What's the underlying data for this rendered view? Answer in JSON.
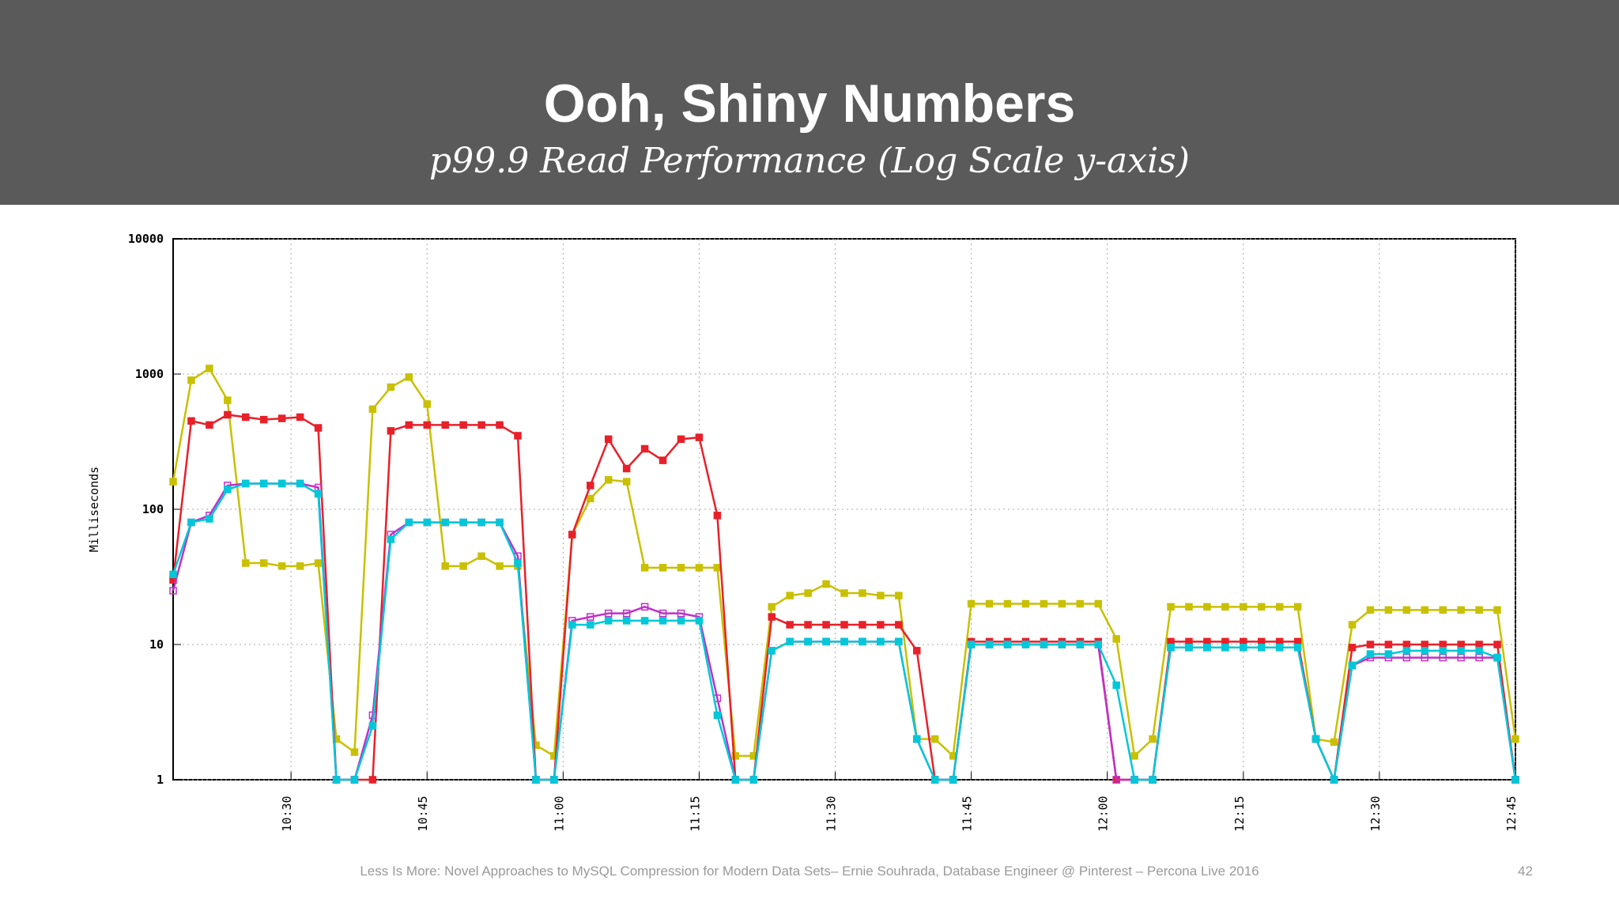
{
  "header": {
    "title": "Ooh, Shiny Numbers",
    "subtitle": "p99.9 Read Performance (Log Scale y-axis)"
  },
  "chart_data": {
    "type": "line",
    "ylabel": "Milliseconds",
    "log_y": true,
    "grid": true,
    "xlim": [
      "10:17",
      "12:45"
    ],
    "xticks": [
      "10:30",
      "10:45",
      "11:00",
      "11:15",
      "11:30",
      "11:45",
      "12:00",
      "12:15",
      "12:30",
      "12:45"
    ],
    "ylim": [
      1,
      10000
    ],
    "yticks": [
      1,
      10,
      100,
      1000,
      10000
    ],
    "x": [
      "10:17",
      "10:19",
      "10:21",
      "10:23",
      "10:25",
      "10:27",
      "10:29",
      "10:31",
      "10:33",
      "10:35",
      "10:37",
      "10:39",
      "10:41",
      "10:43",
      "10:45",
      "10:47",
      "10:49",
      "10:51",
      "10:53",
      "10:55",
      "10:57",
      "10:59",
      "11:01",
      "11:03",
      "11:05",
      "11:07",
      "11:09",
      "11:11",
      "11:13",
      "11:15",
      "11:17",
      "11:19",
      "11:21",
      "11:23",
      "11:25",
      "11:27",
      "11:29",
      "11:31",
      "11:33",
      "11:35",
      "11:37",
      "11:39",
      "11:41",
      "11:43",
      "11:45",
      "11:47",
      "11:49",
      "11:51",
      "11:53",
      "11:55",
      "11:57",
      "11:59",
      "12:01",
      "12:03",
      "12:05",
      "12:07",
      "12:09",
      "12:11",
      "12:13",
      "12:15",
      "12:17",
      "12:19",
      "12:21",
      "12:23",
      "12:25",
      "12:27",
      "12:29",
      "12:31",
      "12:33",
      "12:35",
      "12:37",
      "12:39",
      "12:41",
      "12:43",
      "12:45"
    ],
    "series": [
      {
        "color": "#c8c000",
        "values": [
          160,
          900,
          1100,
          640,
          40,
          40,
          38,
          38,
          40,
          2,
          1.6,
          550,
          800,
          950,
          600,
          38,
          38,
          45,
          38,
          38,
          1.8,
          1.5,
          65,
          120,
          165,
          160,
          37,
          37,
          37,
          37,
          37,
          1.5,
          1.5,
          19,
          23,
          24,
          28,
          24,
          24,
          23,
          23,
          2,
          2,
          1.5,
          20,
          20,
          20,
          20,
          20,
          20,
          20,
          20,
          11,
          1.5,
          2,
          19,
          19,
          19,
          19,
          19,
          19,
          19,
          19,
          2,
          1.9,
          14,
          18,
          18,
          18,
          18,
          18,
          18,
          18,
          18,
          2
        ]
      },
      {
        "color": "#e8202a",
        "values": [
          30,
          450,
          420,
          500,
          480,
          460,
          470,
          480,
          400,
          1,
          1,
          1,
          380,
          420,
          420,
          420,
          420,
          420,
          420,
          350,
          1,
          1,
          65,
          150,
          330,
          200,
          280,
          230,
          330,
          340,
          90,
          1,
          1,
          16,
          14,
          14,
          14,
          14,
          14,
          14,
          14,
          9,
          1,
          1,
          10.5,
          10.5,
          10.5,
          10.5,
          10.5,
          10.5,
          10.5,
          10.5,
          1,
          1,
          1,
          10.5,
          10.5,
          10.5,
          10.5,
          10.5,
          10.5,
          10.5,
          10.5,
          2,
          1,
          9.5,
          10,
          10,
          10,
          10,
          10,
          10,
          10,
          10,
          1
        ]
      },
      {
        "color": "#c030c8",
        "values": [
          25,
          80,
          90,
          150,
          155,
          155,
          155,
          155,
          145,
          1,
          1,
          3,
          65,
          80,
          80,
          80,
          80,
          80,
          80,
          45,
          1,
          1,
          15,
          16,
          17,
          17,
          19,
          17,
          17,
          16,
          4,
          1,
          1,
          9,
          10.5,
          10.5,
          10.5,
          10.5,
          10.5,
          10.5,
          10.5,
          2,
          1,
          1,
          10,
          10,
          10,
          10,
          10,
          10,
          10,
          10,
          1,
          1,
          1,
          9.5,
          9.5,
          9.5,
          9.5,
          9.5,
          9.5,
          9.5,
          9.5,
          2,
          1,
          7,
          8,
          8,
          8,
          8,
          8,
          8,
          8,
          8,
          1
        ]
      },
      {
        "color": "#00c8d8",
        "values": [
          33,
          80,
          85,
          140,
          155,
          155,
          155,
          155,
          130,
          1,
          1,
          2.5,
          60,
          80,
          80,
          80,
          80,
          80,
          80,
          40,
          1,
          1,
          14,
          14,
          15,
          15,
          15,
          15,
          15,
          15,
          3,
          1,
          1,
          9,
          10.5,
          10.5,
          10.5,
          10.5,
          10.5,
          10.5,
          10.5,
          2,
          1,
          1,
          10,
          10,
          10,
          10,
          10,
          10,
          10,
          10,
          5,
          1,
          1,
          9.5,
          9.5,
          9.5,
          9.5,
          9.5,
          9.5,
          9.5,
          9.5,
          2,
          1,
          7,
          8.5,
          8.5,
          9,
          9,
          9,
          9,
          9,
          8,
          1
        ]
      }
    ]
  },
  "footer": {
    "text": "Less Is More: Novel Approaches to MySQL Compression for Modern Data Sets– Ernie Souhrada, Database Engineer @ Pinterest – Percona Live 2016",
    "page": "42"
  }
}
